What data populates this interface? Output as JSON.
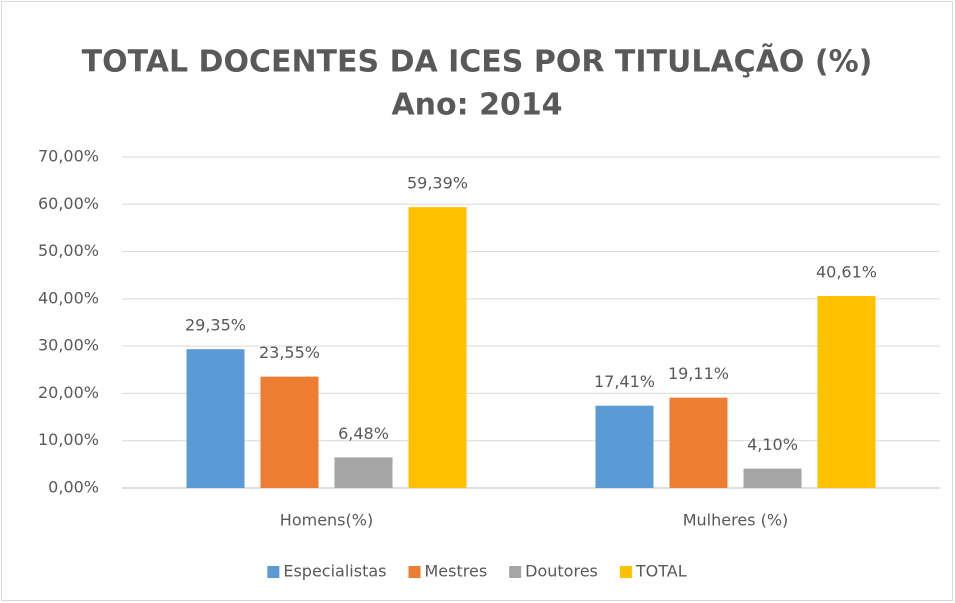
{
  "chart_data": {
    "type": "bar",
    "title": "TOTAL DOCENTES DA ICES POR TITULAÇÃO (%)",
    "subtitle": "Ano: 2014",
    "categories": [
      "Homens(%)",
      "Mulheres (%)"
    ],
    "series": [
      {
        "name": "Especialistas",
        "color": "#5b9bd5",
        "values": [
          29.35,
          17.41
        ],
        "value_labels": [
          "29,35%",
          "17,41%"
        ]
      },
      {
        "name": "Mestres",
        "color": "#ed7d31",
        "values": [
          23.55,
          19.11
        ],
        "value_labels": [
          "23,55%",
          "19,11%"
        ]
      },
      {
        "name": "Doutores",
        "color": "#a5a5a5",
        "values": [
          6.48,
          4.1
        ],
        "value_labels": [
          "6,48%",
          "4,10%"
        ]
      },
      {
        "name": "TOTAL",
        "color": "#ffc000",
        "values": [
          59.39,
          40.61
        ],
        "value_labels": [
          "59,39%",
          "40,61%"
        ]
      }
    ],
    "ylim": [
      0,
      70
    ],
    "yticks": [
      {
        "value": 0,
        "label": "0,00%"
      },
      {
        "value": 10,
        "label": "10,00%"
      },
      {
        "value": 20,
        "label": "20,00%"
      },
      {
        "value": 30,
        "label": "30,00%"
      },
      {
        "value": 40,
        "label": "40,00%"
      },
      {
        "value": 50,
        "label": "50,00%"
      },
      {
        "value": 60,
        "label": "60,00%"
      },
      {
        "value": 70,
        "label": "70,00%"
      }
    ],
    "grid": true,
    "legend": "bottom"
  }
}
